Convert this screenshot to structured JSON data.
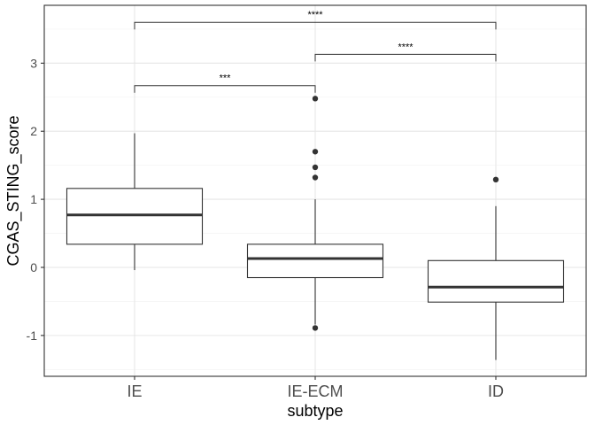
{
  "chart_data": {
    "type": "box",
    "xlabel": "subtype",
    "ylabel": "CGAS_STING_score",
    "ylim": [
      -1.6,
      3.85
    ],
    "yticks": [
      -1,
      0,
      1,
      2,
      3
    ],
    "ytick_labels": [
      "-1",
      "0",
      "1",
      "2",
      "3"
    ],
    "grid": true,
    "categories": [
      "IE",
      "IE-ECM",
      "ID"
    ],
    "boxes": [
      {
        "category": "IE",
        "whisker_low": -0.04,
        "q1": 0.34,
        "median": 0.77,
        "q3": 1.16,
        "whisker_high": 1.97,
        "outliers": []
      },
      {
        "category": "IE-ECM",
        "whisker_low": -0.84,
        "q1": -0.15,
        "median": 0.13,
        "q3": 0.34,
        "whisker_high": 1.0,
        "outliers": [
          2.48,
          1.7,
          1.47,
          1.32,
          -0.89
        ]
      },
      {
        "category": "ID",
        "whisker_low": -1.36,
        "q1": -0.51,
        "median": -0.29,
        "q3": 0.1,
        "whisker_high": 0.9,
        "outliers": [
          1.29
        ]
      }
    ],
    "significance": [
      {
        "from": "IE",
        "to": "IE-ECM",
        "y": 2.67,
        "label": "***"
      },
      {
        "from": "IE-ECM",
        "to": "ID",
        "y": 3.13,
        "label": "****"
      },
      {
        "from": "IE",
        "to": "ID",
        "y": 3.6,
        "label": "****"
      }
    ]
  }
}
